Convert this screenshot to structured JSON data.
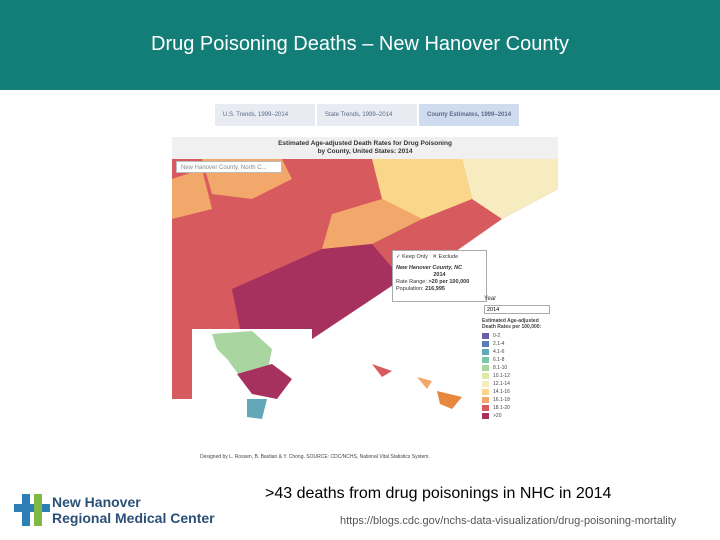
{
  "header": {
    "title": "Drug Poisoning Deaths – New Hanover County"
  },
  "screenshot": {
    "tabs": [
      "U.S. Trends, 1999–2014",
      "State Trends, 1999–2014",
      "County Estimates, 1999–2014"
    ],
    "map_title": [
      "Estimated Age-adjusted Death Rates for Drug Poisoning",
      "by County, United States: 2014"
    ],
    "search": "New Hanover County, North C...",
    "popup": {
      "keep": "✓ Keep Only",
      "exclude": "✕ Exclude",
      "county": "New Hanover County, NC",
      "year": "2014",
      "rate_label": "Rate Range:",
      "rate": ">20 per 100,000",
      "pop_label": "Population:",
      "population": "216,995"
    },
    "year_label": "Year",
    "year_value": "2014",
    "legend": {
      "title": "Estimated Age-adjusted Death Rates per 100,000:",
      "items": [
        {
          "label": "0-2",
          "color": "#6b5ea8"
        },
        {
          "label": "2.1-4",
          "color": "#5a7fb8"
        },
        {
          "label": "4.1-6",
          "color": "#62a8b8"
        },
        {
          "label": "6.1-8",
          "color": "#7fc4a6"
        },
        {
          "label": "8.1-10",
          "color": "#a9d6a0"
        },
        {
          "label": "10.1-12",
          "color": "#dfe9a8"
        },
        {
          "label": "12.1-14",
          "color": "#f7ecbf"
        },
        {
          "label": "14.1-16",
          "color": "#f9d68a"
        },
        {
          "label": "16.1-18",
          "color": "#f2a86a"
        },
        {
          "label": "18.1-20",
          "color": "#d75a5e"
        },
        {
          "label": ">20",
          "color": "#a6305e"
        }
      ]
    },
    "credit": "Designed by L. Rossen, B. Bastian & Y. Chong. SOURCE: CDC/NCHS, National Vital Statistics System."
  },
  "caption": ">43 deaths from drug poisonings in NHC in 2014",
  "source_url": "https://blogs.cdc.gov/nchs-data-visualization/drug-poisoning-mortality",
  "logo": [
    "New Hanover",
    "Regional Medical Center"
  ]
}
